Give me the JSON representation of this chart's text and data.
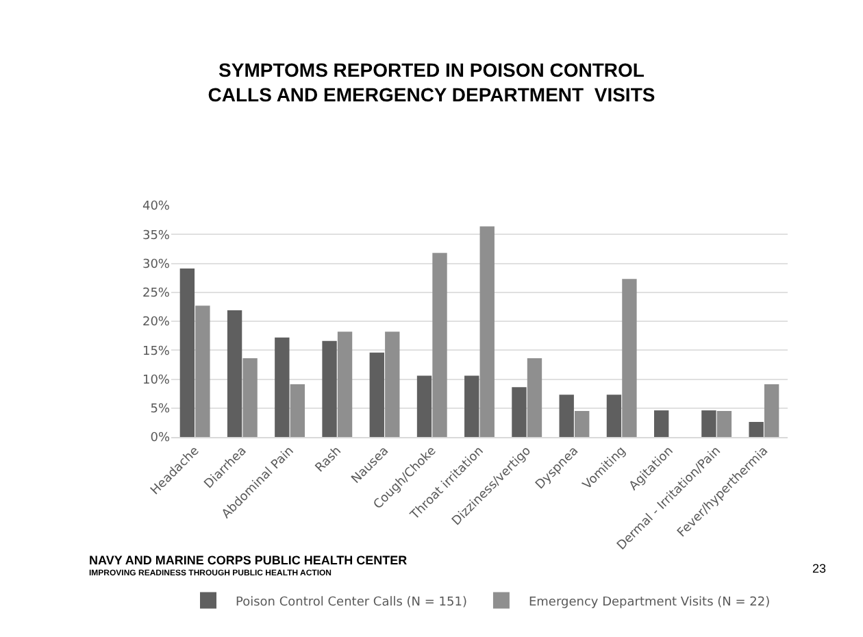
{
  "chart_data": {
    "type": "bar",
    "title": "SYMPTOMS REPORTED IN POISON CONTROL\nCALLS AND EMERGENCY DEPARTMENT  VISITS",
    "categories": [
      "Headache",
      "Diarrhea",
      "Abdominal Pain",
      "Rash",
      "Nausea",
      "Cough/Choke",
      "Throat irritation",
      "Dizziness/vertigo",
      "Dyspnea",
      "Vomiting",
      "Agitation",
      "Dermal - Irritation/Pain",
      "Fever/hyperthermia"
    ],
    "series": [
      {
        "name": "Poison Control Center Calls (N = 151)",
        "color": "#5f5f5f",
        "values": [
          29.1,
          21.9,
          17.2,
          16.6,
          14.6,
          10.6,
          10.6,
          8.6,
          7.3,
          7.3,
          4.6,
          4.6,
          2.6
        ]
      },
      {
        "name": "Emergency Department Visits (N = 22)",
        "color": "#8f8f8f",
        "values": [
          22.7,
          13.6,
          9.1,
          18.2,
          18.2,
          31.8,
          36.4,
          13.6,
          4.5,
          27.3,
          0,
          4.5,
          9.1
        ]
      }
    ],
    "ylim": [
      0,
      40
    ],
    "yticks": [
      {
        "value": 0,
        "label": "0%"
      },
      {
        "value": 5,
        "label": "5%"
      },
      {
        "value": 10,
        "label": "10%"
      },
      {
        "value": 15,
        "label": "15%"
      },
      {
        "value": 20,
        "label": "20%"
      },
      {
        "value": 25,
        "label": "25%"
      },
      {
        "value": 30,
        "label": "30%"
      },
      {
        "value": 35,
        "label": "35%"
      },
      {
        "value": 40,
        "label": "40%"
      }
    ],
    "grid": "y",
    "legend": "bottom",
    "annotations": [
      "NAVY AND MARINE CORPS PUBLIC HEALTH CENTER",
      "IMPROVING READINESS THROUGH PUBLIC HEALTH ACTION",
      "23"
    ]
  }
}
